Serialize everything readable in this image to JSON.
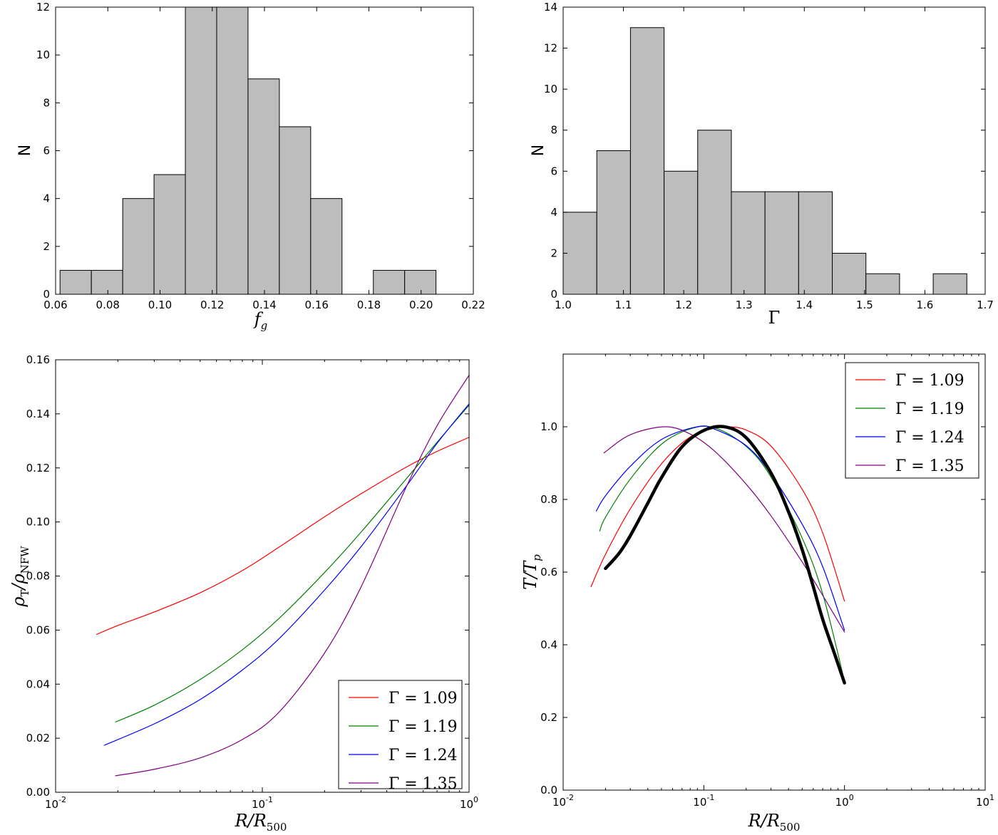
{
  "chart_data": [
    {
      "type": "bar",
      "title": "",
      "xlabel": "f_g",
      "xlabel_main": "f",
      "xlabel_sub": "g",
      "ylabel": "N",
      "xlim": [
        0.06,
        0.22
      ],
      "ylim": [
        0,
        12
      ],
      "xticks": [
        0.06,
        0.08,
        0.1,
        0.12,
        0.14,
        0.16,
        0.18,
        0.2,
        0.22
      ],
      "xtick_labels": [
        "0.06",
        "0.08",
        "0.10",
        "0.12",
        "0.14",
        "0.16",
        "0.18",
        "0.20",
        "0.22"
      ],
      "yticks": [
        0,
        2,
        4,
        6,
        8,
        10,
        12
      ],
      "ytick_labels": [
        "0",
        "2",
        "4",
        "6",
        "8",
        "10",
        "12"
      ],
      "bin_edges": [
        0.0617,
        0.0737,
        0.0857,
        0.0977,
        0.1097,
        0.1217,
        0.1337,
        0.1457,
        0.1577,
        0.1697,
        0.1817,
        0.1937,
        0.2057
      ],
      "counts": [
        1,
        1,
        4,
        5,
        12,
        12,
        9,
        7,
        4,
        0,
        1,
        1
      ],
      "bar_color": "#bdbdbd"
    },
    {
      "type": "bar",
      "title": "",
      "xlabel": "Γ",
      "ylabel": "N",
      "xlim": [
        1.0,
        1.7
      ],
      "ylim": [
        0,
        14
      ],
      "xticks": [
        1.0,
        1.1,
        1.2,
        1.3,
        1.4,
        1.5,
        1.6,
        1.7
      ],
      "xtick_labels": [
        "1.0",
        "1.1",
        "1.2",
        "1.3",
        "1.4",
        "1.5",
        "1.6",
        "1.7"
      ],
      "yticks": [
        0,
        2,
        4,
        6,
        8,
        10,
        12,
        14
      ],
      "ytick_labels": [
        "0",
        "2",
        "4",
        "6",
        "8",
        "10",
        "12",
        "14"
      ],
      "bin_edges": [
        1.0,
        1.0558,
        1.1116,
        1.1674,
        1.2232,
        1.279,
        1.3348,
        1.3906,
        1.4464,
        1.5022,
        1.558,
        1.6138,
        1.6696
      ],
      "counts": [
        4,
        7,
        13,
        6,
        8,
        5,
        5,
        5,
        2,
        1,
        0,
        1
      ],
      "bar_color": "#bdbdbd"
    },
    {
      "type": "line",
      "title": "",
      "xlabel": "R/R_500",
      "xlabel_main": "R/R",
      "xlabel_sub": "500",
      "ylabel": "ρ_T/ρ_NFW",
      "ylabel_main_1": "ρ",
      "ylabel_sub_1": "T",
      "ylabel_sep": "/ρ",
      "ylabel_sub_2": "NFW",
      "xscale": "log",
      "xlim": [
        0.01,
        1.0
      ],
      "ylim": [
        0.0,
        0.16
      ],
      "xticks": [
        0.01,
        0.1,
        1.0
      ],
      "xtick_base": "10",
      "xtick_exps": [
        "-2",
        "-1",
        "0"
      ],
      "yticks": [
        0.0,
        0.02,
        0.04,
        0.06,
        0.08,
        0.1,
        0.12,
        0.14,
        0.16
      ],
      "ytick_labels": [
        "0.00",
        "0.02",
        "0.04",
        "0.06",
        "0.08",
        "0.10",
        "0.12",
        "0.14",
        "0.16"
      ],
      "legend_location": "lower-right",
      "series": [
        {
          "name": "Γ = 1.09",
          "label": "Γ = 1.09",
          "color": "#ff0000",
          "x": [
            0.0158,
            0.02,
            0.03,
            0.05,
            0.08,
            0.12,
            0.2,
            0.3,
            0.5,
            0.7,
            1.0
          ],
          "y": [
            0.0584,
            0.0617,
            0.0667,
            0.0738,
            0.082,
            0.0906,
            0.1019,
            0.1104,
            0.1204,
            0.1261,
            0.1313
          ]
        },
        {
          "name": "Γ = 1.19",
          "label": "Γ = 1.19",
          "color": "#008000",
          "x": [
            0.0195,
            0.03,
            0.05,
            0.08,
            0.12,
            0.2,
            0.3,
            0.5,
            0.7,
            1.0
          ],
          "y": [
            0.026,
            0.0322,
            0.0417,
            0.0527,
            0.0642,
            0.0813,
            0.0962,
            0.1162,
            0.1295,
            0.1432
          ]
        },
        {
          "name": "Γ = 1.24",
          "label": "Γ = 1.24",
          "color": "#0000ff",
          "x": [
            0.0172,
            0.03,
            0.05,
            0.08,
            0.12,
            0.2,
            0.3,
            0.5,
            0.7,
            1.0
          ],
          "y": [
            0.0174,
            0.0253,
            0.0343,
            0.0452,
            0.0567,
            0.0748,
            0.0908,
            0.1135,
            0.1291,
            0.1437
          ]
        },
        {
          "name": "Γ = 1.35",
          "label": "Γ = 1.35",
          "color": "#800080",
          "x": [
            0.0195,
            0.03,
            0.05,
            0.08,
            0.12,
            0.2,
            0.3,
            0.5,
            0.7,
            1.0
          ],
          "y": [
            0.0061,
            0.0085,
            0.0127,
            0.0195,
            0.0295,
            0.0515,
            0.0759,
            0.1134,
            0.1356,
            0.1543
          ]
        }
      ]
    },
    {
      "type": "line",
      "title": "",
      "xlabel": "R/R_500",
      "xlabel_main": "R/R",
      "xlabel_sub": "500",
      "ylabel": "T/T_p",
      "ylabel_main": "T/T",
      "ylabel_sub": "p",
      "xscale": "log",
      "xlim": [
        0.01,
        10.0
      ],
      "ylim": [
        0.0,
        1.2
      ],
      "xticks": [
        0.01,
        0.1,
        1.0,
        10.0
      ],
      "xtick_base": "10",
      "xtick_exps": [
        "-2",
        "-1",
        "0",
        "1"
      ],
      "yticks": [
        0.0,
        0.2,
        0.4,
        0.6,
        0.8,
        1.0
      ],
      "ytick_labels": [
        "0.0",
        "0.2",
        "0.4",
        "0.6",
        "0.8",
        "1.0"
      ],
      "legend_location": "top-right",
      "series": [
        {
          "name": "Γ = 1.09",
          "label": "Γ = 1.09",
          "color": "#ff0000",
          "x": [
            0.0158,
            0.02,
            0.03,
            0.05,
            0.08,
            0.12,
            0.15,
            0.2,
            0.3,
            0.5,
            0.7,
            1.0
          ],
          "y": [
            0.56,
            0.649,
            0.774,
            0.898,
            0.972,
            0.997,
            1.0,
            0.991,
            0.947,
            0.828,
            0.708,
            0.52
          ]
        },
        {
          "name": "Γ = 1.19",
          "label": "Γ = 1.19",
          "color": "#008000",
          "x": [
            0.0182,
            0.02,
            0.03,
            0.05,
            0.08,
            0.12,
            0.2,
            0.3,
            0.5,
            0.7,
            1.0
          ],
          "y": [
            0.713,
            0.751,
            0.856,
            0.952,
            0.994,
            0.997,
            0.946,
            0.862,
            0.694,
            0.54,
            0.3
          ]
        },
        {
          "name": "Γ = 1.24",
          "label": "Γ = 1.24",
          "color": "#0000ff",
          "x": [
            0.0172,
            0.02,
            0.03,
            0.05,
            0.09,
            0.12,
            0.2,
            0.3,
            0.5,
            0.7,
            1.0
          ],
          "y": [
            0.768,
            0.81,
            0.891,
            0.965,
            1.0,
            0.993,
            0.948,
            0.87,
            0.732,
            0.615,
            0.44
          ]
        },
        {
          "name": "Γ = 1.35",
          "label": "Γ = 1.35",
          "color": "#800080",
          "x": [
            0.0195,
            0.03,
            0.053,
            0.08,
            0.12,
            0.2,
            0.3,
            0.5,
            0.7,
            1.0
          ],
          "y": [
            0.928,
            0.978,
            1.0,
            0.98,
            0.932,
            0.842,
            0.755,
            0.628,
            0.536,
            0.435
          ]
        },
        {
          "name": "thick black",
          "label": "",
          "color": "#000000",
          "thick": true,
          "x": [
            0.02,
            0.025,
            0.03,
            0.04,
            0.05,
            0.07,
            0.1,
            0.14,
            0.2,
            0.3,
            0.4,
            0.5,
            0.6,
            0.7,
            0.85,
            1.0
          ],
          "y": [
            0.61,
            0.652,
            0.7,
            0.79,
            0.86,
            0.945,
            0.99,
            1.0,
            0.97,
            0.873,
            0.766,
            0.662,
            0.56,
            0.47,
            0.375,
            0.295
          ]
        }
      ]
    }
  ]
}
